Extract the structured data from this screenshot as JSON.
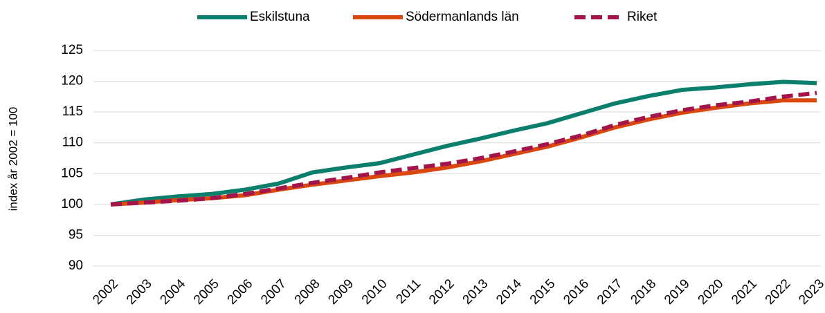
{
  "chart_data": {
    "type": "line",
    "y_label": "index år 2002 = 100",
    "categories": [
      "2002",
      "2003",
      "2004",
      "2005",
      "2006",
      "2007",
      "2008",
      "2009",
      "2010",
      "2011",
      "2012",
      "2013",
      "2014",
      "2015",
      "2016",
      "2017",
      "2018",
      "2019",
      "2020",
      "2021",
      "2022",
      "2023"
    ],
    "series": [
      {
        "name": "Eskilstuna",
        "color": "#0b7f6c",
        "dash": false,
        "values": [
          100,
          100.8,
          101.3,
          101.7,
          102.4,
          103.4,
          105.2,
          106.0,
          106.7,
          108.1,
          109.5,
          110.7,
          112.0,
          113.2,
          114.8,
          116.4,
          117.6,
          118.6,
          119.0,
          119.5,
          119.9,
          119.7
        ]
      },
      {
        "name": "Södermanlands län",
        "color": "#d9480f",
        "dash": false,
        "values": [
          100,
          100.3,
          100.7,
          101.0,
          101.5,
          102.4,
          103.2,
          103.9,
          104.6,
          105.2,
          106.0,
          107.0,
          108.2,
          109.4,
          110.9,
          112.5,
          113.8,
          114.9,
          115.7,
          116.4,
          116.9,
          116.9
        ]
      },
      {
        "name": "Riket",
        "color": "#a3154a",
        "dash": true,
        "values": [
          100,
          100.3,
          100.6,
          101.0,
          101.7,
          102.6,
          103.5,
          104.3,
          105.2,
          105.9,
          106.6,
          107.5,
          108.6,
          109.8,
          111.2,
          112.9,
          114.2,
          115.3,
          116.1,
          116.7,
          117.5,
          118.1
        ]
      }
    ],
    "ylim": [
      90,
      125
    ],
    "yticks": [
      90,
      95,
      100,
      105,
      110,
      115,
      120,
      125
    ],
    "grid": true,
    "legend": "top"
  }
}
